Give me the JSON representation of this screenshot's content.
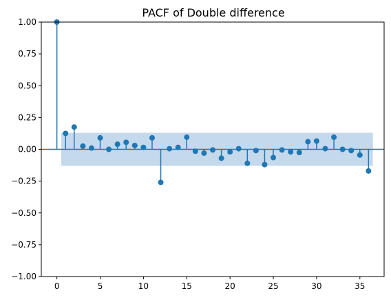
{
  "chart_data": {
    "type": "stem",
    "title": "PACF of Double difference",
    "xlabel": "",
    "ylabel": "",
    "xlim": [
      -1.8,
      37.8
    ],
    "ylim": [
      -1.0,
      1.0
    ],
    "x_ticks": [
      0,
      5,
      10,
      15,
      20,
      25,
      30,
      35
    ],
    "y_ticks": [
      -1.0,
      -0.75,
      -0.5,
      -0.25,
      0.0,
      0.25,
      0.5,
      0.75,
      1.0
    ],
    "y_tick_labels": [
      "−1.00",
      "−0.75",
      "−0.50",
      "−0.25",
      "0.00",
      "0.25",
      "0.50",
      "0.75",
      "1.00"
    ],
    "confidence_band": {
      "x_start": 0.5,
      "x_end": 36.5,
      "lower": -0.13,
      "upper": 0.13
    },
    "grid": false,
    "colors": {
      "stem": "#1f77b4",
      "band": "#c5d9ec"
    },
    "lags": [
      0,
      1,
      2,
      3,
      4,
      5,
      6,
      7,
      8,
      9,
      10,
      11,
      12,
      13,
      14,
      15,
      16,
      17,
      18,
      19,
      20,
      21,
      22,
      23,
      24,
      25,
      26,
      27,
      28,
      29,
      30,
      31,
      32,
      33,
      34,
      35,
      36
    ],
    "values": [
      1.0,
      0.125,
      0.175,
      0.025,
      0.01,
      0.09,
      0.0,
      0.04,
      0.055,
      0.03,
      0.015,
      0.09,
      -0.26,
      0.005,
      0.015,
      0.095,
      -0.015,
      -0.03,
      -0.005,
      -0.07,
      -0.02,
      0.005,
      -0.11,
      -0.01,
      -0.12,
      -0.065,
      -0.005,
      -0.02,
      -0.025,
      0.06,
      0.065,
      0.005,
      0.095,
      0.0,
      -0.01,
      -0.045,
      -0.17
    ]
  }
}
